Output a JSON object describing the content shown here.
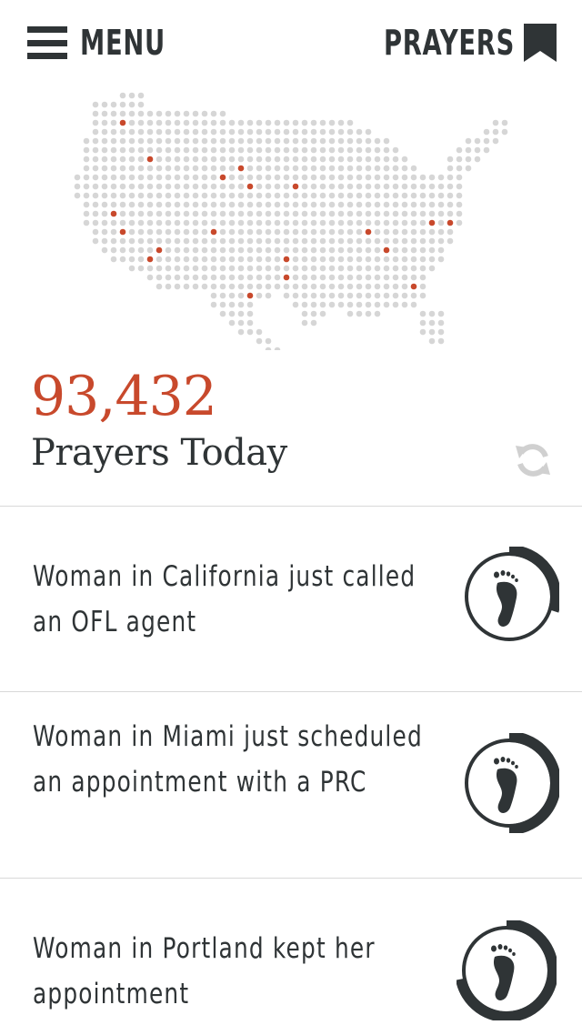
{
  "header": {
    "menu_label": "MENU",
    "prayers_label": "PRAYERS",
    "menu_icon": "hamburger-icon",
    "prayers_icon": "bookmark-icon"
  },
  "map": {
    "dot_color": "#d6d6d6",
    "highlight_color": "#c8492c"
  },
  "stats": {
    "count": "93,432",
    "label": "Prayers Today",
    "refresh_icon": "refresh-icon"
  },
  "feed": {
    "items": [
      {
        "text": "Woman in California just called an OFL agent",
        "progress": 0.3,
        "icon": "footprint-icon"
      },
      {
        "text": "Woman in Miami just scheduled an appointment with a PRC",
        "progress": 0.5,
        "icon": "footprint-icon"
      },
      {
        "text": "Woman in Portland kept her appointment",
        "progress": 0.72,
        "icon": "footprint-icon"
      }
    ]
  },
  "colors": {
    "accent": "#c8492c",
    "text": "#2f3436",
    "ring_track": "#2f3436",
    "divider": "#d8d8d8",
    "icon_gray": "#d0d0d0"
  }
}
